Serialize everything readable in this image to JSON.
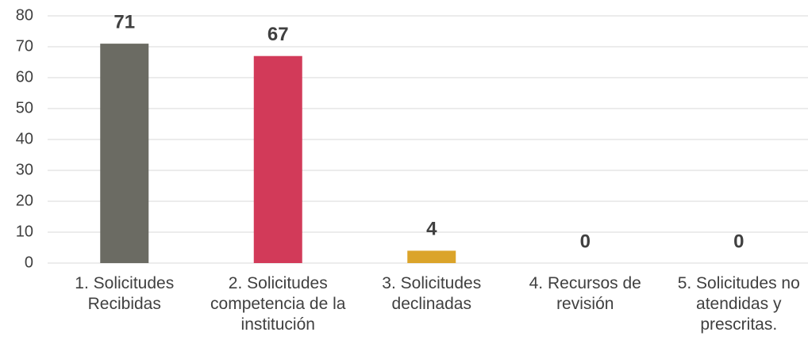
{
  "chart_data": {
    "type": "bar",
    "categories": [
      "1. Solicitudes Recibidas",
      "2. Solicitudes competencia de la institución",
      "3. Solicitudes declinadas",
      "4. Recursos de revisión",
      "5. Solicitudes no atendidas y prescritas."
    ],
    "values": [
      71,
      67,
      4,
      0,
      0
    ],
    "colors": [
      "#6b6b63",
      "#d23a59",
      "#dba42a",
      "#7f7f7f",
      "#7f7f7f"
    ],
    "ylim": [
      0,
      80
    ],
    "yticks": [
      0,
      10,
      20,
      30,
      40,
      50,
      60,
      70,
      80
    ],
    "grid": true
  }
}
